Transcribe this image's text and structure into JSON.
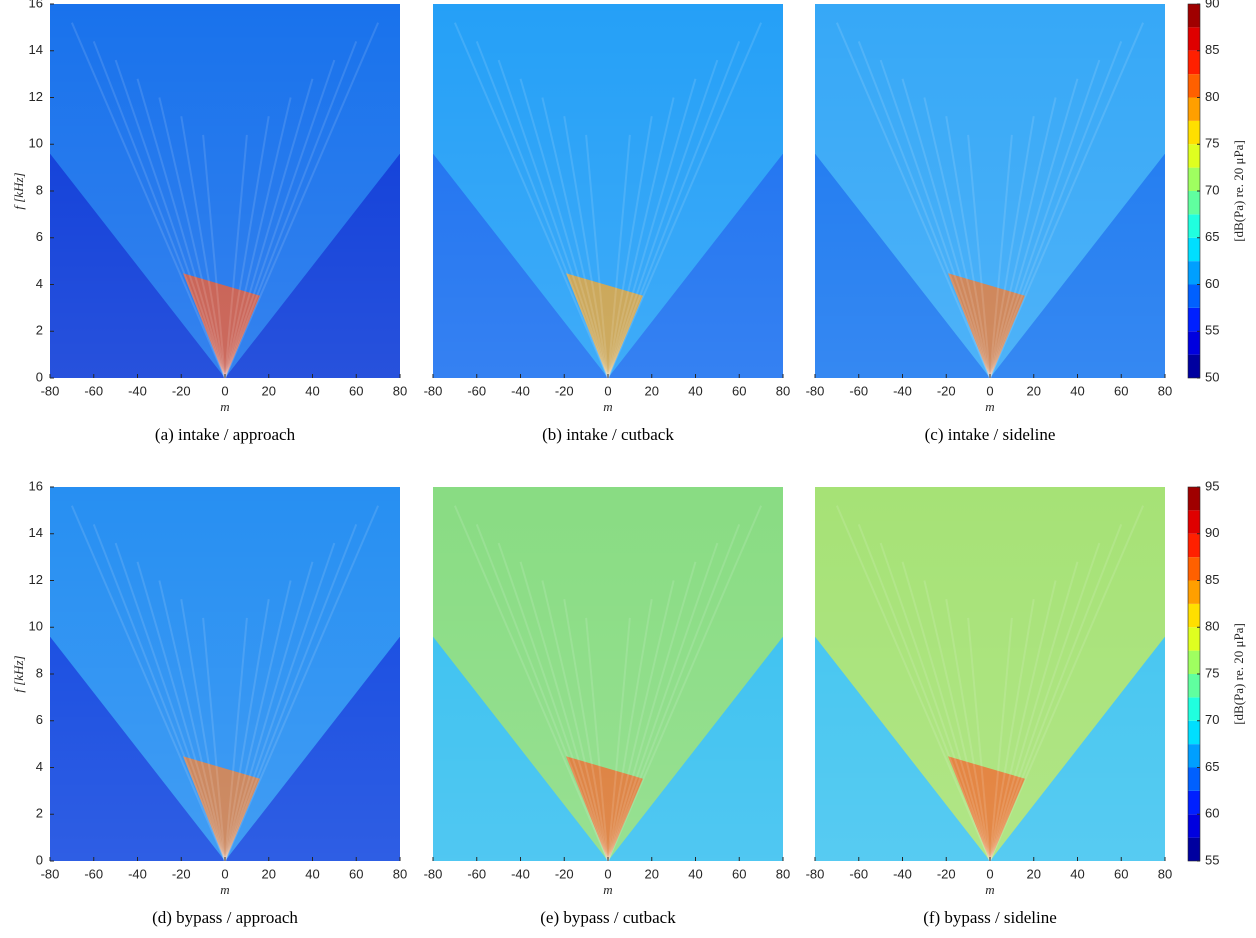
{
  "chart_data": [
    {
      "type": "heatmap",
      "caption": "(a)  intake / approach",
      "xlabel": "m",
      "ylabel": "f [kHz]",
      "xlim": [
        -80,
        80
      ],
      "xticks": [
        -80,
        -60,
        -40,
        -20,
        0,
        20,
        40,
        60,
        80
      ],
      "ylim": [
        0,
        16
      ],
      "yticks": [
        0,
        2,
        4,
        6,
        8,
        10,
        12,
        14,
        16
      ],
      "colors": {
        "background": "#0a3ad8",
        "cone": "#1c7cf0",
        "apex": "#f05020"
      }
    },
    {
      "type": "heatmap",
      "caption": "(b)  intake / cutback",
      "xlabel": "m",
      "xlim": [
        -80,
        80
      ],
      "xticks": [
        -80,
        -60,
        -40,
        -20,
        0,
        20,
        40,
        60,
        80
      ],
      "ylim": [
        0,
        16
      ],
      "colors": {
        "background": "#1a70f0",
        "cone": "#28a8f8",
        "apex": "#f0a020"
      }
    },
    {
      "type": "heatmap",
      "caption": "(c)  intake / sideline",
      "xlabel": "m",
      "xlim": [
        -80,
        80
      ],
      "xticks": [
        -80,
        -60,
        -40,
        -20,
        0,
        20,
        40,
        60,
        80
      ],
      "ylim": [
        0,
        16
      ],
      "colors": {
        "background": "#1a78f0",
        "cone": "#3cb0f8",
        "apex": "#f07020"
      },
      "colorbar": {
        "label": "[dB(Pa) re. 20 μPa]",
        "lim": [
          50,
          90
        ],
        "ticks": [
          50,
          55,
          60,
          65,
          70,
          75,
          80,
          85,
          90
        ]
      }
    },
    {
      "type": "heatmap",
      "caption": "(d)  bypass / approach",
      "xlabel": "m",
      "ylabel": "f [kHz]",
      "xlim": [
        -80,
        80
      ],
      "xticks": [
        -80,
        -60,
        -40,
        -20,
        0,
        20,
        40,
        60,
        80
      ],
      "ylim": [
        0,
        16
      ],
      "yticks": [
        0,
        2,
        4,
        6,
        8,
        10,
        12,
        14,
        16
      ],
      "colors": {
        "background": "#1248e0",
        "cone": "#2c9cf4",
        "apex": "#f07828"
      }
    },
    {
      "type": "heatmap",
      "caption": "(e)  bypass / cutback",
      "xlabel": "m",
      "xlim": [
        -80,
        80
      ],
      "xticks": [
        -80,
        -60,
        -40,
        -20,
        0,
        20,
        40,
        60,
        80
      ],
      "ylim": [
        0,
        16
      ],
      "colors": {
        "background": "#38c0f0",
        "cone": "#98e070",
        "apex": "#f06020"
      }
    },
    {
      "type": "heatmap",
      "caption": "(f)  bypass / sideline",
      "xlabel": "m",
      "xlim": [
        -80,
        80
      ],
      "xticks": [
        -80,
        -60,
        -40,
        -20,
        0,
        20,
        40,
        60,
        80
      ],
      "ylim": [
        0,
        16
      ],
      "colors": {
        "background": "#40c4f0",
        "cone": "#b8e860",
        "apex": "#f06020"
      },
      "colorbar": {
        "label": "[dB(Pa) re. 20 μPa]",
        "lim": [
          55,
          95
        ],
        "ticks": [
          55,
          60,
          65,
          70,
          75,
          80,
          85,
          90,
          95
        ]
      }
    }
  ]
}
